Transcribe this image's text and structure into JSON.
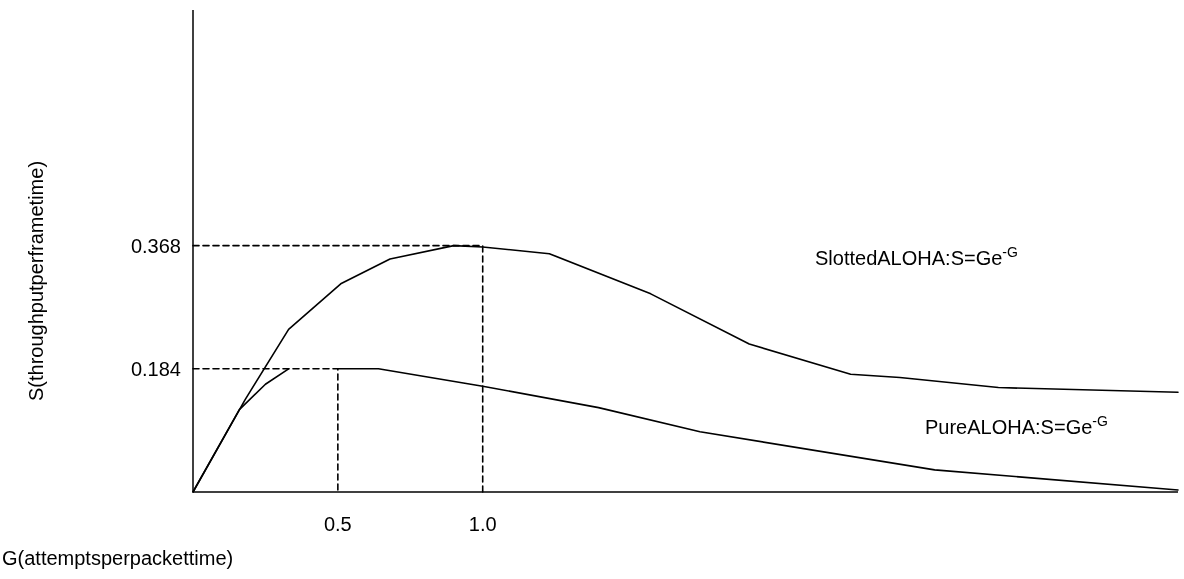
{
  "chart_data": {
    "type": "line",
    "xlabel": "G(attemptsperpackettime)",
    "ylabel": "S(throughputperframetime)",
    "xlim": [
      0,
      3.4
    ],
    "ylim": [
      0,
      0.72
    ],
    "xticks": [
      0.5,
      {
        "value": 1,
        "label": "1.0"
      }
    ],
    "yticks": [
      0.184,
      0.368
    ],
    "grid": false,
    "marker": "none",
    "series": [
      {
        "color": "#000000",
        "x": [
          0,
          0.18,
          0.33,
          0.51,
          0.68,
          0.9,
          1.0,
          1.23,
          1.58,
          1.92,
          2.27,
          2.44,
          2.78,
          3.4
        ],
        "values": [
          0,
          0.138,
          0.243,
          0.311,
          0.348,
          0.368,
          0.366,
          0.356,
          0.296,
          0.221,
          0.176,
          0.171,
          0.156,
          0.149
        ]
      },
      {
        "color": "#000000",
        "x": [
          0,
          0.16,
          0.25,
          0.33,
          0.42,
          0.5,
          0.64,
          0.82,
          1.0,
          1.4,
          1.75,
          2.56,
          3.4
        ],
        "values": [
          0,
          0.123,
          0.161,
          0.184,
          null,
          0.184,
          0.184,
          0.171,
          0.158,
          0.126,
          0.09,
          0.033,
          0.003
        ]
      },
      {
        "color": "#000000",
        "line_style": "dashed",
        "x": [
          0,
          1.0,
          1.0
        ],
        "values": [
          0.368,
          0.368,
          0
        ]
      },
      {
        "color": "#000000",
        "line_style": "dashed",
        "x": [
          0,
          0.5,
          0.5
        ],
        "values": [
          0.184,
          0.184,
          0
        ]
      }
    ],
    "annotations": [
      "SlottedALOHA:S=Ge$^{-G}$",
      "PureALOHA:S=Ge$^{-G}$"
    ]
  }
}
